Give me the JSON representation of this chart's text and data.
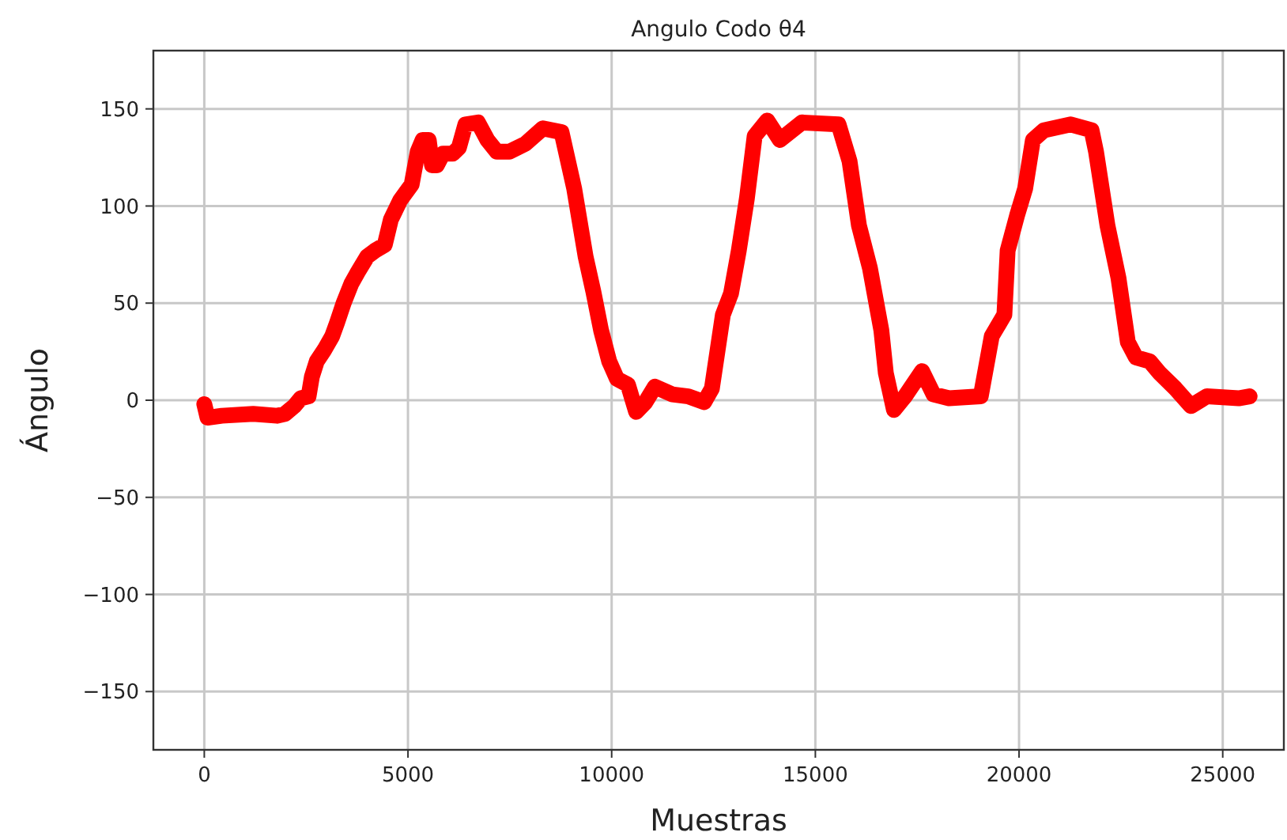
{
  "chart_data": {
    "type": "line",
    "title": "Angulo Codo θ4",
    "xlabel": "Muestras",
    "ylabel": "Ángulo",
    "xlim": [
      -1250,
      26500
    ],
    "ylim": [
      -180,
      180
    ],
    "xticks": [
      0,
      5000,
      10000,
      15000,
      20000,
      25000
    ],
    "yticks": [
      {
        "value": -150,
        "label": "−150"
      },
      {
        "value": -100,
        "label": "−100"
      },
      {
        "value": -50,
        "label": "−50"
      },
      0,
      50,
      100,
      150
    ],
    "grid": true,
    "marker": "none",
    "line_style": "solid",
    "series": [
      {
        "color": "#ff0000",
        "x": [
          0,
          80,
          430,
          1200,
          1790,
          1980,
          2210,
          2370,
          2560,
          2640,
          2760,
          2950,
          3140,
          3260,
          3420,
          3610,
          3770,
          4000,
          4190,
          4430,
          4580,
          4810,
          5090,
          5240,
          5360,
          5510,
          5590,
          5710,
          5860,
          6100,
          6250,
          6410,
          6720,
          6950,
          7180,
          7490,
          7880,
          8310,
          8770,
          9080,
          9360,
          9550,
          9740,
          9940,
          10130,
          10400,
          10600,
          10830,
          11060,
          11490,
          11880,
          12270,
          12460,
          12730,
          12930,
          13120,
          13320,
          13510,
          13820,
          14130,
          14670,
          15570,
          15840,
          16070,
          16340,
          16620,
          16730,
          16930,
          17200,
          17620,
          17900,
          18280,
          19060,
          19330,
          19640,
          19720,
          19950,
          20150,
          20340,
          20610,
          21270,
          21780,
          21890,
          22170,
          22440,
          22670,
          22870,
          23210,
          23450,
          23840,
          24220,
          24610,
          25390,
          25660
        ],
        "values": [
          -2,
          -9,
          -8,
          -7,
          -8,
          -7,
          -3,
          1,
          2,
          12,
          20,
          26,
          33,
          40,
          50,
          60,
          66,
          74,
          77,
          80,
          93,
          103,
          111,
          128,
          134,
          134,
          121,
          121,
          127,
          127,
          130,
          142,
          143,
          134,
          128,
          128,
          132,
          140,
          138,
          109,
          74,
          56,
          36,
          20,
          11,
          8,
          -6,
          -1,
          7,
          3,
          2,
          -1,
          6,
          44,
          55,
          77,
          104,
          136,
          144,
          134,
          143,
          142,
          123,
          90,
          68,
          36,
          14,
          -5,
          2,
          15,
          3,
          1,
          2,
          33,
          44,
          77,
          95,
          109,
          134,
          139,
          142,
          139,
          128,
          90,
          63,
          30,
          22,
          20,
          14,
          6,
          -3,
          2,
          1,
          2
        ]
      }
    ]
  }
}
